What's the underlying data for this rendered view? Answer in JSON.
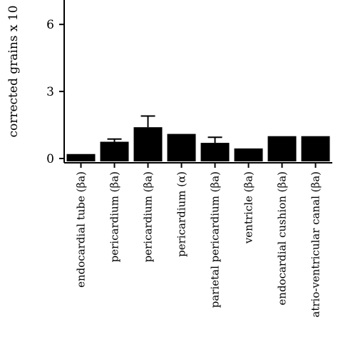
{
  "chart_data": {
    "type": "bar",
    "ylabel": "corrected grains x 10",
    "ylim": [
      0,
      7
    ],
    "yticks": [
      0,
      3,
      6
    ],
    "grid": false,
    "bar_color": "#000000",
    "categories": [
      "endocardial tube (βa)",
      "pericardium (βa)",
      "pericardium (βa)",
      "pericardium (α)",
      "parietal pericardium (βa)",
      "ventricle (βa)",
      "endocardial cushion (βa)",
      "atrio-ventricular canal (βa)"
    ],
    "values": [
      0.2,
      0.75,
      1.4,
      1.1,
      0.7,
      0.45,
      1.0,
      1.0
    ],
    "errors": [
      0,
      0.12,
      0.5,
      0,
      0.25,
      0,
      0,
      0
    ]
  }
}
